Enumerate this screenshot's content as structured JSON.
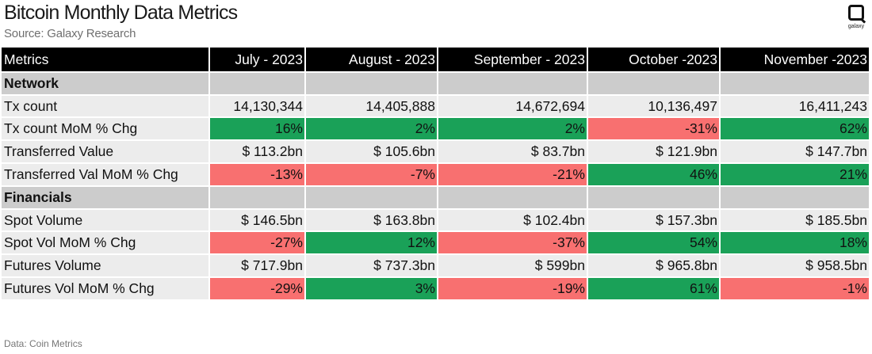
{
  "header": {
    "title": "Bitcoin Monthly Data Metrics",
    "subtitle": "Source: Galaxy Research",
    "logo_text": "galaxy",
    "logo_icon": "galaxy-logo-icon"
  },
  "footer": {
    "source": "Data: Coin Metrics"
  },
  "colors": {
    "positive": "#1aa158",
    "negative": "#f87070",
    "header_bg": "#000000",
    "section_bg": "#cccccc",
    "row_bg": "#ececec"
  },
  "chart_data": {
    "type": "table",
    "columns": [
      "Metrics",
      "July - 2023",
      "August - 2023",
      "September - 2023",
      "October -2023",
      "November -2023"
    ],
    "sections": [
      {
        "name": "Network",
        "rows": [
          {
            "metric": "Tx count",
            "values": [
              "14,130,344",
              "14,405,888",
              "14,672,694",
              "10,136,497",
              "16,411,243"
            ],
            "signs": [
              0,
              0,
              0,
              0,
              0
            ]
          },
          {
            "metric": "Tx count MoM % Chg",
            "values": [
              "16%",
              "2%",
              "2%",
              "-31%",
              "62%"
            ],
            "signs": [
              1,
              1,
              1,
              -1,
              1
            ]
          },
          {
            "metric": "Transferred Value",
            "values": [
              "$ 113.2bn",
              "$ 105.6bn",
              "$ 83.7bn",
              "$ 121.9bn",
              "$ 147.7bn"
            ],
            "signs": [
              0,
              0,
              0,
              0,
              0
            ]
          },
          {
            "metric": "Transferred Val  MoM % Chg",
            "values": [
              "-13%",
              "-7%",
              "-21%",
              "46%",
              "21%"
            ],
            "signs": [
              -1,
              -1,
              -1,
              1,
              1
            ]
          }
        ]
      },
      {
        "name": "Financials",
        "rows": [
          {
            "metric": "Spot Volume",
            "values": [
              "$ 146.5bn",
              "$ 163.8bn",
              "$  102.4bn",
              "$ 157.3bn",
              "$ 185.5bn"
            ],
            "signs": [
              0,
              0,
              0,
              0,
              0
            ]
          },
          {
            "metric": "Spot Vol  MoM % Chg",
            "values": [
              "-27%",
              "12%",
              "-37%",
              "54%",
              "18%"
            ],
            "signs": [
              -1,
              1,
              -1,
              1,
              1
            ]
          },
          {
            "metric": "Futures Volume",
            "values": [
              "$ 717.9bn",
              "$ 737.3bn",
              "$ 599bn",
              "$ 965.8bn",
              "$ 958.5bn"
            ],
            "signs": [
              0,
              0,
              0,
              0,
              0
            ]
          },
          {
            "metric": "Futures Vol  MoM % Chg",
            "values": [
              "-29%",
              "3%",
              "-19%",
              "61%",
              "-1%"
            ],
            "signs": [
              -1,
              1,
              -1,
              1,
              -1
            ]
          }
        ]
      }
    ]
  }
}
